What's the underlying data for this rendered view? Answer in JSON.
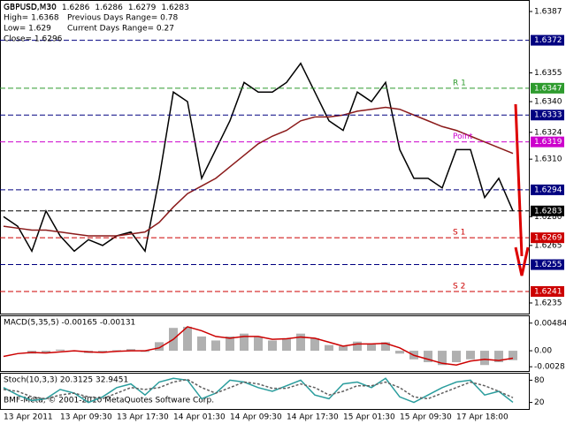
{
  "chart_data": [
    {
      "type": "line",
      "title": "GBPUSD,M30",
      "title_values": [
        1.6286,
        1.6286,
        1.6279,
        1.6283
      ],
      "info": [
        "High= 1.6368",
        "Previous Days Range= 0.78",
        "Low= 1.629",
        "Current Days Range= 0.27",
        "Close= 1.6296"
      ],
      "watermark": "BMF-Meta, © 2001-2010 MetaQuotes Software Corp.",
      "categories": [
        "13 Apr 2011",
        null,
        null,
        null,
        "13 Apr 09:30",
        null,
        null,
        null,
        "13 Apr 17:30",
        null,
        null,
        null,
        "14 Apr 01:30",
        null,
        null,
        null,
        "14 Apr 09:30",
        null,
        null,
        null,
        "14 Apr 17:30",
        null,
        null,
        null,
        "15 Apr 01:30",
        null,
        null,
        null,
        "15 Apr 09:30",
        null,
        null,
        null,
        "17 Apr 18:00",
        null,
        null,
        null,
        null
      ],
      "series": [
        {
          "color": "#000000",
          "values": [
            1.628,
            1.6275,
            1.6262,
            1.6283,
            1.627,
            1.6262,
            1.6268,
            1.6265,
            1.627,
            1.6272,
            1.6262,
            1.63,
            1.6345,
            1.634,
            1.63,
            1.6315,
            1.633,
            1.635,
            1.6345,
            1.6345,
            1.635,
            1.636,
            1.6345,
            1.633,
            1.6325,
            1.6345,
            1.634,
            1.635,
            1.6315,
            1.63,
            1.63,
            1.6295,
            1.6315,
            1.6315,
            1.629,
            1.63,
            1.6283
          ]
        },
        {
          "color": "#8b1a1a",
          "values": [
            1.6275,
            1.6274,
            1.6273,
            1.6273,
            1.6272,
            1.6271,
            1.627,
            1.627,
            1.627,
            1.6271,
            1.6272,
            1.6277,
            1.6285,
            1.6292,
            1.6296,
            1.63,
            1.6306,
            1.6312,
            1.6318,
            1.6322,
            1.6325,
            1.633,
            1.6332,
            1.6332,
            1.6333,
            1.6335,
            1.6336,
            1.6337,
            1.6336,
            1.6333,
            1.633,
            1.6327,
            1.6325,
            1.6322,
            1.6319,
            1.6316,
            1.6313
          ]
        }
      ],
      "ylim": [
        1.6229,
        1.6393
      ],
      "yticks": [
        1.6387,
        1.6355,
        {
          "value": 1.634,
          "label": "1.6340"
        },
        1.6324,
        {
          "value": 1.631,
          "label": "1.6310"
        },
        {
          "value": 1.628,
          "label": "1.6280"
        },
        1.6265,
        1.6235
      ],
      "levels": [
        {
          "value": 1.6372,
          "color": "#000080"
        },
        {
          "value": 1.6347,
          "color": "#2e9b2e",
          "name": "R 1"
        },
        {
          "value": 1.6333,
          "color": "#000080"
        },
        {
          "value": 1.6319,
          "color": "#cc00cc",
          "name": "Point"
        },
        {
          "value": 1.6294,
          "color": "#000080"
        },
        {
          "value": 1.6283,
          "color": "#000000"
        },
        {
          "value": 1.6269,
          "color": "#cc0000",
          "name": "S 1"
        },
        {
          "value": 1.6255,
          "color": "#000080"
        },
        {
          "value": 1.6241,
          "color": "#cc0000",
          "name": "S 2"
        }
      ]
    },
    {
      "type": "macd",
      "title": "MACD(5,35,5) -0.00165 -0.00131",
      "series": [
        {
          "color": "#b0b0b0",
          "values": [
            0,
            0,
            -0.0005,
            -0.0003,
            0.0002,
            0,
            -0.0004,
            -0.0002,
            0.0001,
            0.0003,
            -0.0002,
            0.0015,
            0.004,
            0.0042,
            0.0025,
            0.0018,
            0.0025,
            0.003,
            0.0024,
            0.0018,
            0.0022,
            0.003,
            0.0022,
            0.001,
            0.0008,
            0.0016,
            0.0012,
            0.0015,
            -0.0005,
            -0.0015,
            -0.002,
            -0.0025,
            -0.002,
            -0.0015,
            -0.0025,
            -0.002,
            -0.00165
          ]
        },
        {
          "color": "#cc0000",
          "values": [
            -0.001,
            -0.0005,
            -0.0003,
            -0.0004,
            -0.0002,
            0,
            -0.0002,
            -0.0003,
            -0.0001,
            0,
            0,
            0.0005,
            0.002,
            0.0042,
            0.0035,
            0.0025,
            0.0022,
            0.0025,
            0.0025,
            0.002,
            0.0021,
            0.0024,
            0.0022,
            0.0015,
            0.0008,
            0.0012,
            0.0012,
            0.0013,
            0.0005,
            -0.0008,
            -0.0015,
            -0.0022,
            -0.0025,
            -0.0018,
            -0.0015,
            -0.0017,
            -0.00131
          ]
        }
      ],
      "ylim": [
        -0.0037,
        0.0062
      ],
      "yticks": [
        0.00484,
        {
          "value": 0,
          "label": "0.00"
        },
        -0.0028
      ]
    },
    {
      "type": "stoch",
      "title": "Stoch(10,3,3) 20.3125 32.9451",
      "series": [
        {
          "color": "#2a9d9d",
          "values": [
            60,
            40,
            25,
            30,
            55,
            45,
            20,
            35,
            60,
            70,
            40,
            75,
            85,
            80,
            30,
            45,
            80,
            75,
            60,
            50,
            65,
            80,
            40,
            30,
            70,
            75,
            60,
            85,
            35,
            20,
            40,
            60,
            75,
            80,
            40,
            50,
            20.3125
          ]
        },
        {
          "color": "#606060",
          "values": [
            55,
            50,
            35,
            30,
            40,
            45,
            35,
            30,
            45,
            60,
            55,
            60,
            75,
            82,
            60,
            45,
            60,
            75,
            70,
            58,
            58,
            70,
            60,
            40,
            50,
            65,
            65,
            75,
            60,
            35,
            30,
            45,
            60,
            75,
            65,
            50,
            32.9451
          ]
        }
      ],
      "ylim": [
        0,
        100
      ],
      "yticks": [
        80,
        20
      ]
    }
  ]
}
